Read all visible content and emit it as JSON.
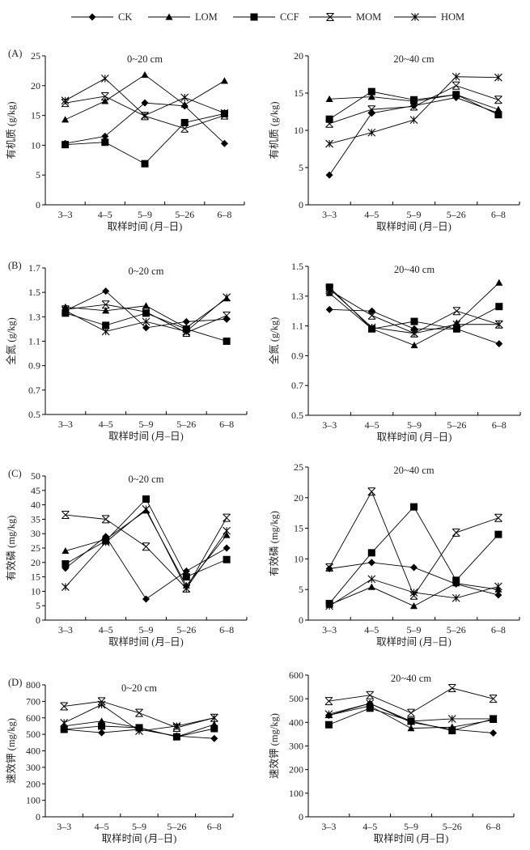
{
  "legend": [
    {
      "name": "CK",
      "marker": "diamond"
    },
    {
      "name": "LOM",
      "marker": "triangle"
    },
    {
      "name": "CCF",
      "marker": "square"
    },
    {
      "name": "MOM",
      "marker": "x"
    },
    {
      "name": "HOM",
      "marker": "asterisk"
    }
  ],
  "chart_data": [
    {
      "type": "line",
      "panel_label": "(A)",
      "title": "0~20 cm",
      "ylabel": "有机质 (g/kg)",
      "xlabel": "取样时间 (月–日)",
      "categories": [
        "3–3",
        "4–5",
        "5–9",
        "5–26",
        "6–8"
      ],
      "ylim": [
        0,
        25
      ],
      "yticks": [
        "0",
        "5",
        "10",
        "15",
        "20",
        "25"
      ],
      "series": [
        {
          "name": "CK",
          "values": [
            10.3,
            11.5,
            17.1,
            16.6,
            10.3
          ]
        },
        {
          "name": "LOM",
          "values": [
            14.3,
            17.4,
            21.8,
            16.8,
            20.8
          ]
        },
        {
          "name": "CCF",
          "values": [
            10.1,
            10.5,
            6.9,
            13.8,
            15.3
          ]
        },
        {
          "name": "MOM",
          "values": [
            17.1,
            18.2,
            14.9,
            12.8,
            15.0
          ]
        },
        {
          "name": "HOM",
          "values": [
            17.5,
            21.2,
            15.0,
            18.0,
            15.4
          ]
        }
      ]
    },
    {
      "type": "line",
      "panel_label": "",
      "title": "20~40 cm",
      "ylabel": "有机质 (g/kg)",
      "xlabel": "取样时间 (月–日)",
      "categories": [
        "3–3",
        "4–5",
        "5–9",
        "5–26",
        "6–8"
      ],
      "ylim": [
        0,
        20
      ],
      "yticks": [
        "0",
        "5",
        "10",
        "15",
        "20"
      ],
      "series": [
        {
          "name": "CK",
          "values": [
            4.0,
            12.3,
            13.3,
            14.4,
            12.3
          ]
        },
        {
          "name": "LOM",
          "values": [
            14.2,
            14.5,
            13.9,
            14.8,
            12.8
          ]
        },
        {
          "name": "CCF",
          "values": [
            11.5,
            15.2,
            14.1,
            14.8,
            12.1
          ]
        },
        {
          "name": "MOM",
          "values": [
            10.9,
            12.8,
            13.2,
            16.0,
            14.1
          ]
        },
        {
          "name": "HOM",
          "values": [
            8.2,
            9.7,
            11.4,
            17.2,
            17.1
          ]
        }
      ]
    },
    {
      "type": "line",
      "panel_label": "(B)",
      "title": "0~20 cm",
      "ylabel": "全氮 (g/kg)",
      "xlabel": "取样时间 (月–日)",
      "categories": [
        "3–3",
        "4–5",
        "5–9",
        "5–26",
        "6–8"
      ],
      "ylim": [
        0.5,
        1.7
      ],
      "yticks": [
        "0.5",
        "0.7",
        "0.9",
        "1.1",
        "1.3",
        "1.5",
        "1.7"
      ],
      "series": [
        {
          "name": "CK",
          "values": [
            1.35,
            1.51,
            1.21,
            1.26,
            1.28
          ]
        },
        {
          "name": "LOM",
          "values": [
            1.38,
            1.35,
            1.39,
            1.21,
            1.45
          ]
        },
        {
          "name": "CCF",
          "values": [
            1.33,
            1.23,
            1.33,
            1.2,
            1.1
          ]
        },
        {
          "name": "MOM",
          "values": [
            1.36,
            1.4,
            1.34,
            1.17,
            1.31
          ]
        },
        {
          "name": "HOM",
          "values": [
            1.35,
            1.18,
            1.26,
            1.18,
            1.46
          ]
        }
      ]
    },
    {
      "type": "line",
      "panel_label": "",
      "title": "20~40 cm",
      "ylabel": "全氮 (g/kg)",
      "xlabel": "取样时间 (月–日)",
      "categories": [
        "3–3",
        "4–5",
        "5–9",
        "5–26",
        "6–8"
      ],
      "ylim": [
        0.5,
        1.5
      ],
      "yticks": [
        "0.5",
        "0.7",
        "0.9",
        "1.1",
        "1.3",
        "1.5"
      ],
      "series": [
        {
          "name": "CK",
          "values": [
            1.21,
            1.2,
            1.08,
            1.08,
            0.98
          ]
        },
        {
          "name": "LOM",
          "values": [
            1.32,
            1.08,
            0.97,
            1.12,
            1.39
          ]
        },
        {
          "name": "CCF",
          "values": [
            1.36,
            1.08,
            1.13,
            1.08,
            1.23
          ]
        },
        {
          "name": "MOM",
          "values": [
            1.34,
            1.17,
            1.05,
            1.2,
            1.11
          ]
        },
        {
          "name": "HOM",
          "values": [
            1.35,
            1.09,
            1.05,
            1.11,
            1.11
          ]
        }
      ]
    },
    {
      "type": "line",
      "panel_label": "(C)",
      "title": "0~20 cm",
      "ylabel": "有效磷 (mg/kg)",
      "xlabel": "取样时间 (月–日)",
      "categories": [
        "3–3",
        "4–5",
        "5–9",
        "5–26",
        "6–8"
      ],
      "ylim": [
        0,
        50
      ],
      "yticks": [
        "0",
        "5",
        "10",
        "15",
        "20",
        "25",
        "30",
        "35",
        "40",
        "45",
        "50"
      ],
      "series": [
        {
          "name": "CK",
          "values": [
            18,
            29,
            7.3,
            17,
            25
          ]
        },
        {
          "name": "LOM",
          "values": [
            24,
            28,
            38,
            12,
            29.5
          ]
        },
        {
          "name": "CCF",
          "values": [
            19.5,
            27.5,
            42,
            15,
            21
          ]
        },
        {
          "name": "MOM",
          "values": [
            36.5,
            35,
            25.5,
            11,
            35.5
          ]
        },
        {
          "name": "HOM",
          "values": [
            11.5,
            27,
            38.5,
            11,
            31
          ]
        }
      ]
    },
    {
      "type": "line",
      "panel_label": "",
      "title": "20~40 cm",
      "ylabel": "有效磷 (mg/kg)",
      "xlabel": "取样时间 (月–日)",
      "categories": [
        "3–3",
        "4–5",
        "5–9",
        "5–26",
        "6–8"
      ],
      "ylim": [
        0,
        25
      ],
      "yticks": [
        "0",
        "5",
        "10",
        "15",
        "20",
        "25"
      ],
      "series": [
        {
          "name": "CK",
          "values": [
            8.4,
            9.4,
            8.6,
            5.9,
            4.1
          ]
        },
        {
          "name": "LOM",
          "values": [
            2.5,
            5.4,
            2.3,
            6.0,
            5.0
          ]
        },
        {
          "name": "CCF",
          "values": [
            2.7,
            11.0,
            18.5,
            6.5,
            14.0
          ]
        },
        {
          "name": "MOM",
          "values": [
            8.6,
            21.0,
            4.0,
            14.3,
            16.7
          ]
        },
        {
          "name": "HOM",
          "values": [
            2.3,
            6.7,
            4.5,
            3.6,
            5.5
          ]
        }
      ]
    },
    {
      "type": "line",
      "panel_label": "(D)",
      "title": "0~20 cm",
      "ylabel": "速效钾 (mg/kg)",
      "xlabel": "取样时间 (月–日)",
      "categories": [
        "3–3",
        "4–5",
        "5–9",
        "5–26",
        "6–8"
      ],
      "ylim": [
        0,
        800
      ],
      "yticks": [
        "0",
        "100",
        "200",
        "300",
        "400",
        "500",
        "600",
        "700",
        "800"
      ],
      "series": [
        {
          "name": "CK",
          "values": [
            530,
            510,
            530,
            490,
            475
          ]
        },
        {
          "name": "LOM",
          "values": [
            550,
            580,
            540,
            485,
            560
          ]
        },
        {
          "name": "CCF",
          "values": [
            530,
            550,
            540,
            485,
            535
          ]
        },
        {
          "name": "MOM",
          "values": [
            670,
            700,
            630,
            540,
            600
          ]
        },
        {
          "name": "HOM",
          "values": [
            570,
            680,
            520,
            550,
            600
          ]
        }
      ]
    },
    {
      "type": "line",
      "panel_label": "",
      "title": "20~40 cm",
      "ylabel": "速效钾 (mg/kg)",
      "xlabel": "取样时间 (月–日)",
      "categories": [
        "3–3",
        "4–5",
        "5–9",
        "5–26",
        "6–8"
      ],
      "ylim": [
        0,
        600
      ],
      "yticks": [
        "0",
        "100",
        "200",
        "300",
        "400",
        "500",
        "600"
      ],
      "series": [
        {
          "name": "CK",
          "values": [
            430,
            480,
            400,
            370,
            355
          ]
        },
        {
          "name": "LOM",
          "values": [
            430,
            470,
            375,
            380,
            410
          ]
        },
        {
          "name": "CCF",
          "values": [
            390,
            460,
            405,
            365,
            415
          ]
        },
        {
          "name": "MOM",
          "values": [
            490,
            515,
            440,
            545,
            500
          ]
        },
        {
          "name": "HOM",
          "values": [
            435,
            480,
            405,
            415,
            415
          ]
        }
      ]
    }
  ]
}
